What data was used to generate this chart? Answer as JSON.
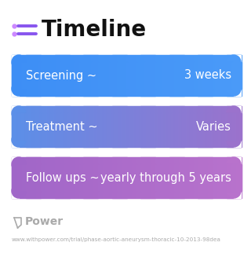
{
  "title": "Timeline",
  "background_color": "#ffffff",
  "rows": [
    {
      "label": "Screening ~",
      "value": "3 weeks",
      "c_left": "#3d8ef5",
      "c_right": "#4a9af8"
    },
    {
      "label": "Treatment ~",
      "value": "Varies",
      "c_left": "#5b8fe8",
      "c_right": "#9b72cc"
    },
    {
      "label": "Follow ups ~",
      "value": "yearly through 5 years",
      "c_left": "#a066c8",
      "c_right": "#b872cc"
    }
  ],
  "footer_logo": "Power",
  "footer_url": "www.withpower.com/trial/phase-aortic-aneurysm-thoracic-10-2013-98dea",
  "footer_color": "#aaaaaa",
  "icon_color": "#8855ee",
  "title_fontsize": 20,
  "label_fontsize": 10.5,
  "footer_fontsize": 5.2
}
